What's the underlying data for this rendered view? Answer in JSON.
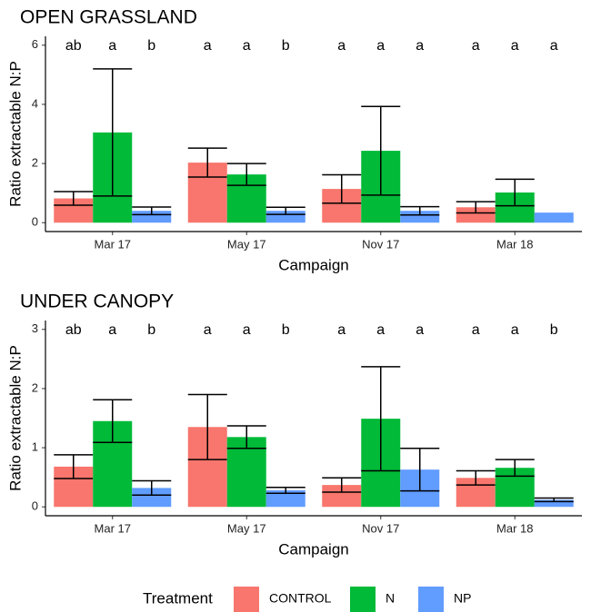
{
  "chart_data": [
    {
      "type": "bar",
      "title": "OPEN GRASSLAND",
      "x_label": "Campaign",
      "y_label": "Ratio extractable N:P",
      "categories": [
        "Mar 17",
        "May 17",
        "Nov 17",
        "Mar 18"
      ],
      "ylim": [
        -0.3,
        6.3
      ],
      "yticks": [
        0,
        2,
        4,
        6
      ],
      "series": [
        {
          "name": "CONTROL",
          "color": "#f8766d",
          "values": [
            0.82,
            2.03,
            1.14,
            0.52
          ],
          "errors": [
            0.23,
            0.49,
            0.48,
            0.19
          ],
          "labels": [
            "ab",
            "a",
            "a",
            "a"
          ]
        },
        {
          "name": "N",
          "color": "#00ba38",
          "values": [
            3.05,
            1.63,
            2.43,
            1.02
          ],
          "errors": [
            2.15,
            0.37,
            1.5,
            0.45
          ],
          "labels": [
            "a",
            "a",
            "a",
            "a"
          ]
        },
        {
          "name": "NP",
          "color": "#619cff",
          "values": [
            0.4,
            0.4,
            0.4,
            0.34
          ],
          "errors": [
            0.13,
            0.12,
            0.14,
            null
          ],
          "labels": [
            "b",
            "b",
            "a",
            "a"
          ]
        }
      ]
    },
    {
      "type": "bar",
      "title": "UNDER CANOPY",
      "x_label": "Campaign",
      "y_label": "Ratio extractable N:P",
      "categories": [
        "Mar 17",
        "May 17",
        "Nov 17",
        "Mar 18"
      ],
      "ylim": [
        -0.15,
        3.15
      ],
      "yticks": [
        0,
        1,
        2,
        3
      ],
      "series": [
        {
          "name": "CONTROL",
          "color": "#f8766d",
          "values": [
            0.68,
            1.35,
            0.37,
            0.49
          ],
          "errors": [
            0.2,
            0.55,
            0.12,
            0.12
          ],
          "labels": [
            "ab",
            "a",
            "a",
            "a"
          ]
        },
        {
          "name": "N",
          "color": "#00ba38",
          "values": [
            1.45,
            1.18,
            1.49,
            0.66
          ],
          "errors": [
            0.36,
            0.19,
            0.88,
            0.14
          ],
          "labels": [
            "a",
            "a",
            "a",
            "a"
          ]
        },
        {
          "name": "NP",
          "color": "#619cff",
          "values": [
            0.32,
            0.28,
            0.63,
            0.12
          ],
          "errors": [
            0.12,
            0.05,
            0.36,
            0.03
          ],
          "labels": [
            "b",
            "b",
            "a",
            "b"
          ]
        }
      ]
    }
  ],
  "legend": {
    "title": "Treatment",
    "position": "bottom"
  }
}
